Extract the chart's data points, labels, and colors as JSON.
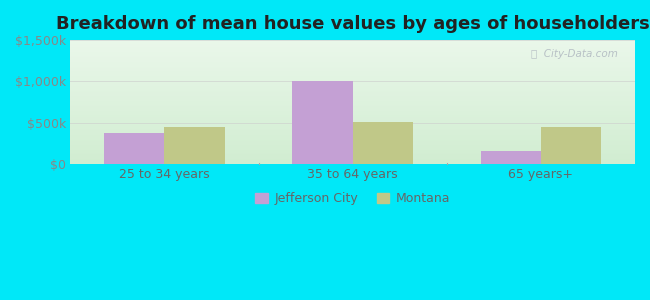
{
  "title": "Breakdown of mean house values by ages of householders",
  "categories": [
    "25 to 34 years",
    "35 to 64 years",
    "65 years+"
  ],
  "jefferson_city_values": [
    375000,
    1000000,
    162500
  ],
  "montana_values": [
    450000,
    512500,
    450000
  ],
  "ylim": [
    0,
    1500000
  ],
  "yticks": [
    0,
    500000,
    1000000,
    1500000
  ],
  "ytick_labels": [
    "$0",
    "$500k",
    "$1,000k",
    "$1,500k"
  ],
  "bar_color_jefferson": "#c4a0d4",
  "bar_color_montana": "#c0c888",
  "legend_labels": [
    "Jefferson City",
    "Montana"
  ],
  "background_outer": "#00e8f8",
  "title_fontsize": 13,
  "tick_fontsize": 9,
  "bar_width": 0.32,
  "watermark": "City-Data.com",
  "watermark_icon": "ⓘ",
  "grid_color": "#cccccc",
  "tick_color": "#888888",
  "label_color": "#666666"
}
